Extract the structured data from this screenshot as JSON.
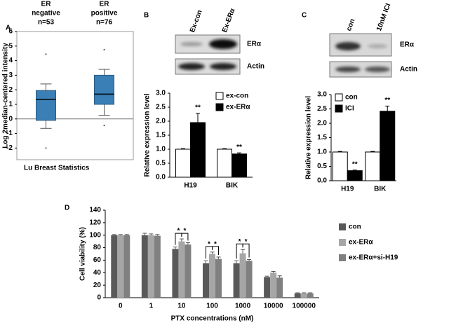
{
  "chart_data": [
    {
      "type": "box",
      "panel": "A",
      "title": "Lu Breast Statistics",
      "ylabel": "Log 2median-centered intensity",
      "categories": [
        [
          "ER",
          "negative",
          "n=53"
        ],
        [
          "ER",
          "positive",
          "n=76"
        ]
      ],
      "boxes": [
        {
          "whislo": -0.65,
          "q1": -0.1,
          "median": 1.35,
          "q3": 1.95,
          "whishi": 2.4,
          "fliers": [
            4.45,
            -2.0
          ]
        },
        {
          "whislo": 0.25,
          "q1": 1.0,
          "median": 1.7,
          "q3": 3.0,
          "whishi": 3.4,
          "fliers": [
            4.75,
            -0.45
          ]
        }
      ],
      "color": "#3a7fb5",
      "ylim": [
        -2.8,
        6
      ],
      "yticks": [
        -2,
        -1,
        0,
        1,
        2,
        3,
        4,
        5,
        6
      ]
    },
    {
      "type": "bar",
      "panel": "B",
      "blot_lanes": [
        "Ex-con",
        "Ex-ERα"
      ],
      "blot_bands": [
        "ERα",
        "Actin"
      ],
      "ylabel": "Relative expression level",
      "categories": [
        "H19",
        "BIK"
      ],
      "series": [
        {
          "name": "ex-con",
          "color": "#ffffff",
          "edgecolor": "#000000",
          "values": [
            1.0,
            1.0
          ],
          "errors": [
            0.02,
            0.02
          ]
        },
        {
          "name": "ex-ERα",
          "color": "#000000",
          "edgecolor": "#000000",
          "values": [
            1.95,
            0.83
          ],
          "errors": [
            0.33,
            0.04
          ],
          "labels": [
            "**",
            "**"
          ]
        }
      ],
      "ylim": [
        0,
        3
      ],
      "yticks": [
        {
          "value": 0,
          "label": "0.0"
        },
        0.5,
        {
          "value": 1,
          "label": "1.0"
        },
        1.5,
        {
          "value": 2,
          "label": "2.0"
        },
        2.5,
        {
          "value": 3,
          "label": "3.0"
        }
      ],
      "legend": "upper right"
    },
    {
      "type": "bar",
      "panel": "C",
      "blot_lanes": [
        "con",
        "10nM ICI"
      ],
      "blot_bands": [
        "ERα",
        "Actin"
      ],
      "ylabel": "Relative expression level",
      "categories": [
        "H19",
        "BIK"
      ],
      "series": [
        {
          "name": "con",
          "color": "#ffffff",
          "edgecolor": "#000000",
          "values": [
            1.0,
            1.0
          ],
          "errors": [
            0.02,
            0.02
          ]
        },
        {
          "name": "ICI",
          "color": "#000000",
          "edgecolor": "#000000",
          "values": [
            0.35,
            2.42
          ],
          "errors": [
            0.02,
            0.18
          ],
          "labels": [
            "**",
            "**"
          ]
        }
      ],
      "ylim": [
        0,
        3
      ],
      "yticks": [
        {
          "value": 0,
          "label": "0.0"
        },
        0.5,
        {
          "value": 1,
          "label": "1.0"
        },
        1.5,
        {
          "value": 2,
          "label": "2.0"
        },
        2.5,
        {
          "value": 3,
          "label": "3.0"
        }
      ],
      "legend": "upper left"
    },
    {
      "type": "bar",
      "panel": "D",
      "ylabel": "Cell viability (%)",
      "xlabel": "PTX concentrations (nM)",
      "categories": [
        "0",
        "1",
        "10",
        "100",
        "1000",
        "10000",
        "100000"
      ],
      "series": [
        {
          "name": "con",
          "color": "#595959",
          "values": [
            100,
            100,
            78,
            55,
            55,
            33,
            7
          ],
          "errors": [
            1,
            3,
            3,
            4,
            4,
            1.5,
            0.8
          ]
        },
        {
          "name": "ex-ERα",
          "color": "#a6a6a6",
          "values": [
            100,
            100,
            90,
            70,
            71,
            40,
            7
          ],
          "errors": [
            1,
            2,
            4,
            3,
            6,
            2,
            0.8
          ]
        },
        {
          "name": "ex-ERα+si-H19",
          "color": "#808080",
          "values": [
            100,
            99,
            85,
            62,
            59,
            32,
            7
          ],
          "errors": [
            1,
            2,
            3,
            3,
            2,
            3,
            0.8
          ]
        }
      ],
      "annotations": [
        "*",
        "*",
        "*",
        "*",
        "*",
        "*"
      ],
      "ylim": [
        0,
        140
      ],
      "yticks": [
        0,
        20,
        40,
        60,
        80,
        100,
        120,
        140
      ],
      "legend": "right"
    }
  ]
}
